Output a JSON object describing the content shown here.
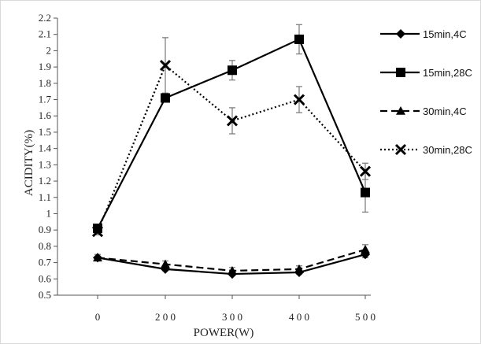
{
  "chart_data": {
    "type": "line",
    "title": "",
    "xlabel": "POWER(W)",
    "ylabel": "ACIDITY(%)",
    "x": [
      0,
      200,
      300,
      400,
      500
    ],
    "x_tick_labels": [
      "0",
      "2 0 0",
      "3 0 0",
      "4 0 0",
      "5 0 0"
    ],
    "ylim": [
      0.5,
      2.2
    ],
    "y_ticks": [
      "0.5",
      "0.6",
      "0.7",
      "0.8",
      "0.9",
      "1",
      "1.1",
      "1.2",
      "1.3",
      "1.4",
      "1.5",
      "1.6",
      "1.7",
      "1.8",
      "1.9",
      "2",
      "2.1",
      "2.2"
    ],
    "y_tick_values": [
      0.5,
      0.6,
      0.7,
      0.8,
      0.9,
      1.0,
      1.1,
      1.2,
      1.3,
      1.4,
      1.5,
      1.6,
      1.7,
      1.8,
      1.9,
      2.0,
      2.1,
      2.2
    ],
    "grid": false,
    "legend_position": "right",
    "series": [
      {
        "name": "15min,4C",
        "values": [
          0.73,
          0.66,
          0.63,
          0.64,
          0.75
        ],
        "error": [
          0.01,
          0.01,
          0.01,
          0.01,
          0.02
        ],
        "marker": "diamond",
        "line": "solid",
        "color": "#000000"
      },
      {
        "name": "15min,28C",
        "values": [
          0.91,
          1.71,
          1.88,
          2.07,
          1.13
        ],
        "error": [
          0.02,
          0.0,
          0.06,
          0.09,
          0.12
        ],
        "marker": "square",
        "line": "solid",
        "color": "#000000"
      },
      {
        "name": "30min,4C",
        "values": [
          0.73,
          0.69,
          0.65,
          0.66,
          0.78
        ],
        "error": [
          0.02,
          0.02,
          0.02,
          0.02,
          0.03
        ],
        "marker": "triangle",
        "line": "dashed",
        "color": "#000000"
      },
      {
        "name": "30min,28C",
        "values": [
          0.89,
          1.91,
          1.57,
          1.7,
          1.26
        ],
        "error": [
          0.02,
          0.17,
          0.08,
          0.08,
          0.05
        ],
        "marker": "x",
        "line": "dotted",
        "color": "#000000"
      }
    ]
  }
}
